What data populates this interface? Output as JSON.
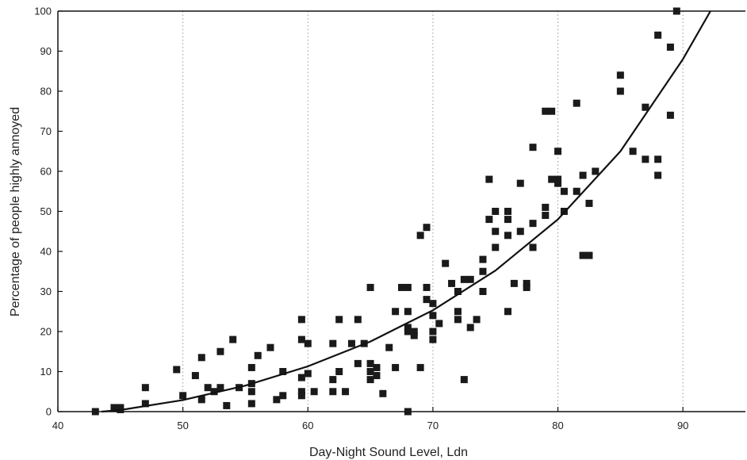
{
  "chart_data": {
    "type": "scatter",
    "xlabel": "Day-Night Sound Level, Ldn",
    "ylabel": "Percentage of people highly annoyed",
    "xlim": [
      40,
      95
    ],
    "ylim": [
      0,
      100
    ],
    "x_ticks": [
      40,
      50,
      60,
      70,
      80,
      90
    ],
    "y_ticks": [
      0,
      10,
      20,
      30,
      40,
      50,
      60,
      70,
      80,
      90,
      100
    ],
    "grid": "vertical-dotted",
    "series": [
      {
        "type": "scatter",
        "points": [
          [
            43,
            0
          ],
          [
            44.5,
            1
          ],
          [
            45,
            1
          ],
          [
            45,
            0.5
          ],
          [
            47,
            6
          ],
          [
            47,
            2
          ],
          [
            49.5,
            10.5
          ],
          [
            50,
            4
          ],
          [
            51,
            9
          ],
          [
            51.5,
            13.5
          ],
          [
            51.5,
            3
          ],
          [
            52,
            6
          ],
          [
            52.5,
            5
          ],
          [
            53,
            15
          ],
          [
            53,
            6
          ],
          [
            53.5,
            1.5
          ],
          [
            54,
            18
          ],
          [
            54.5,
            6
          ],
          [
            55.5,
            11
          ],
          [
            55.5,
            7
          ],
          [
            55.5,
            5
          ],
          [
            55.5,
            2
          ],
          [
            56,
            14
          ],
          [
            57,
            16
          ],
          [
            57.5,
            3
          ],
          [
            58,
            10
          ],
          [
            58,
            4
          ],
          [
            59.5,
            23
          ],
          [
            59.5,
            18
          ],
          [
            59.5,
            8.5
          ],
          [
            59.5,
            5
          ],
          [
            59.5,
            4
          ],
          [
            60,
            17
          ],
          [
            60,
            9.5
          ],
          [
            60.5,
            5
          ],
          [
            62,
            17
          ],
          [
            62,
            8
          ],
          [
            62,
            5
          ],
          [
            62.5,
            23
          ],
          [
            62.5,
            10
          ],
          [
            63,
            5
          ],
          [
            63.5,
            17
          ],
          [
            64,
            23
          ],
          [
            64,
            12
          ],
          [
            64.5,
            17
          ],
          [
            65,
            31
          ],
          [
            65,
            12
          ],
          [
            65,
            10
          ],
          [
            65,
            8
          ],
          [
            65.5,
            11
          ],
          [
            65.5,
            9
          ],
          [
            66,
            4.5
          ],
          [
            66.5,
            16
          ],
          [
            67,
            25
          ],
          [
            67,
            11
          ],
          [
            67.5,
            31
          ],
          [
            68,
            31
          ],
          [
            68,
            25
          ],
          [
            68,
            21
          ],
          [
            68,
            20
          ],
          [
            68.5,
            20
          ],
          [
            68.5,
            19
          ],
          [
            68,
            0
          ],
          [
            69,
            44
          ],
          [
            69,
            11
          ],
          [
            69.5,
            46
          ],
          [
            69.5,
            31
          ],
          [
            69.5,
            28
          ],
          [
            70,
            27
          ],
          [
            70,
            24
          ],
          [
            70,
            20
          ],
          [
            70,
            18
          ],
          [
            70.5,
            22
          ],
          [
            71,
            37
          ],
          [
            71.5,
            32
          ],
          [
            72,
            30
          ],
          [
            72,
            25
          ],
          [
            72,
            23
          ],
          [
            72.5,
            33
          ],
          [
            72.5,
            8
          ],
          [
            73,
            33
          ],
          [
            73,
            21
          ],
          [
            73.5,
            23
          ],
          [
            74,
            38
          ],
          [
            74,
            35
          ],
          [
            74,
            30
          ],
          [
            74.5,
            48
          ],
          [
            74.5,
            58
          ],
          [
            75,
            50
          ],
          [
            75,
            45
          ],
          [
            75,
            41
          ],
          [
            76,
            50
          ],
          [
            76,
            48
          ],
          [
            76,
            44
          ],
          [
            76,
            25
          ],
          [
            76.5,
            32
          ],
          [
            77,
            57
          ],
          [
            77,
            45
          ],
          [
            77.5,
            32
          ],
          [
            77.5,
            31
          ],
          [
            78,
            66
          ],
          [
            78,
            47
          ],
          [
            78,
            41
          ],
          [
            79,
            75
          ],
          [
            79,
            51
          ],
          [
            79,
            49
          ],
          [
            79.5,
            75
          ],
          [
            79.5,
            58
          ],
          [
            80,
            65
          ],
          [
            80,
            58
          ],
          [
            80,
            57
          ],
          [
            80.5,
            55
          ],
          [
            80.5,
            50
          ],
          [
            81.5,
            77
          ],
          [
            81.5,
            55
          ],
          [
            82,
            59
          ],
          [
            82,
            39
          ],
          [
            82.5,
            52
          ],
          [
            82.5,
            39
          ],
          [
            83,
            60
          ],
          [
            85,
            84
          ],
          [
            85,
            80
          ],
          [
            86,
            65
          ],
          [
            87,
            76
          ],
          [
            87,
            63
          ],
          [
            88,
            94
          ],
          [
            88,
            63
          ],
          [
            88,
            59
          ],
          [
            89,
            91
          ],
          [
            89,
            74
          ],
          [
            89.5,
            100
          ]
        ]
      },
      {
        "type": "line",
        "points": [
          [
            43.5,
            0
          ],
          [
            45,
            0.4
          ],
          [
            50,
            2.9
          ],
          [
            55,
            6.5
          ],
          [
            60,
            11.3
          ],
          [
            65,
            17.5
          ],
          [
            70,
            25.3
          ],
          [
            75,
            35.2
          ],
          [
            80,
            48
          ],
          [
            85,
            65
          ],
          [
            90,
            88
          ],
          [
            92.2,
            100
          ]
        ]
      }
    ]
  }
}
